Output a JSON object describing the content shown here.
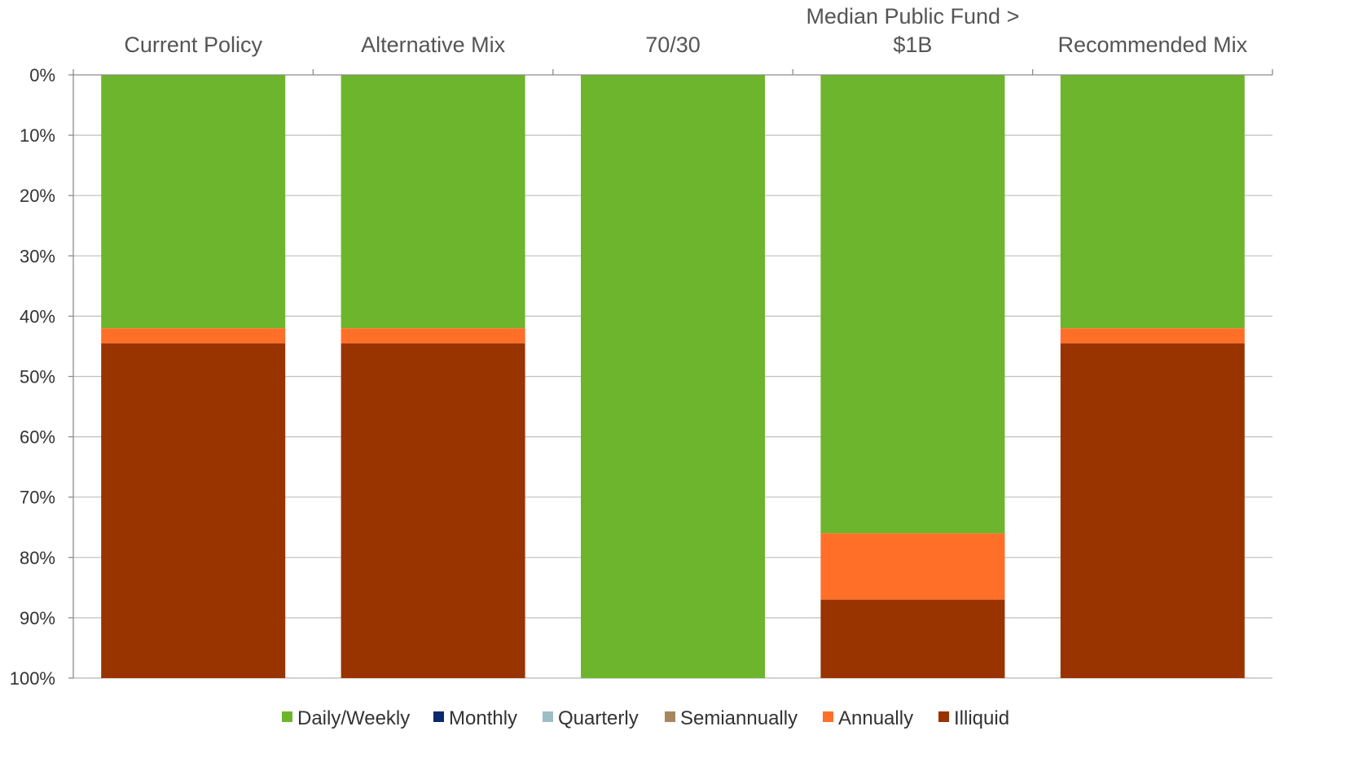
{
  "chart_data": {
    "type": "bar",
    "stacked": true,
    "orientation": "vertical",
    "y_axis_inverted": true,
    "category_axis_position": "top",
    "categories": [
      [
        "Current Policy"
      ],
      [
        "Alternative Mix"
      ],
      [
        "70/30"
      ],
      [
        "Median Public Fund >",
        "$1B"
      ],
      [
        "Recommended Mix"
      ]
    ],
    "series": [
      {
        "name": "Daily/Weekly",
        "color": "#6db52c",
        "values": [
          42,
          42,
          100,
          76,
          42
        ]
      },
      {
        "name": "Monthly",
        "color": "#0b2a6b",
        "values": [
          0,
          0,
          0,
          0,
          0
        ]
      },
      {
        "name": "Quarterly",
        "color": "#9dbdc6",
        "values": [
          0,
          0,
          0,
          0,
          0
        ]
      },
      {
        "name": "Semiannually",
        "color": "#a6875d",
        "values": [
          0,
          0,
          0,
          0,
          0
        ]
      },
      {
        "name": "Annually",
        "color": "#ff6f28",
        "values": [
          2.5,
          2.5,
          0,
          11,
          2.5
        ]
      },
      {
        "name": "Illiquid",
        "color": "#993300",
        "values": [
          55.5,
          55.5,
          0,
          13,
          55.5
        ]
      }
    ],
    "ylim": [
      0,
      100
    ],
    "yticks": [
      "0%",
      "10%",
      "20%",
      "30%",
      "40%",
      "50%",
      "60%",
      "70%",
      "80%",
      "90%",
      "100%"
    ],
    "grid": true,
    "legend_position": "bottom"
  }
}
